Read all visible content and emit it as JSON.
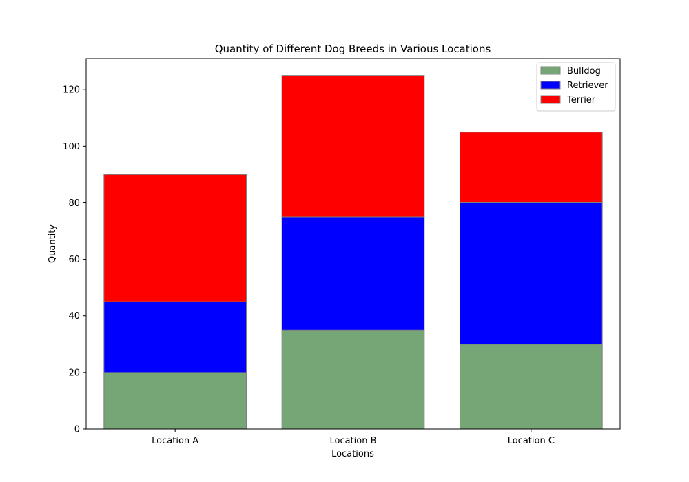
{
  "chart_data": {
    "type": "bar",
    "stacked": true,
    "title": "Quantity of Different Dog Breeds in Various Locations",
    "xlabel": "Locations",
    "ylabel": "Quantity",
    "categories": [
      "Location A",
      "Location B",
      "Location C"
    ],
    "series": [
      {
        "name": "Bulldog",
        "values": [
          20,
          35,
          30
        ],
        "color": "#76a576"
      },
      {
        "name": "Retriever",
        "values": [
          25,
          40,
          50
        ],
        "color": "#0000ff"
      },
      {
        "name": "Terrier",
        "values": [
          45,
          50,
          25
        ],
        "color": "#ff0000"
      }
    ],
    "ylim": [
      0,
      131
    ],
    "yticks": [
      0,
      20,
      40,
      60,
      80,
      100,
      120
    ],
    "grid": false,
    "legend_position": "top-right",
    "edge_color": "#808080"
  }
}
